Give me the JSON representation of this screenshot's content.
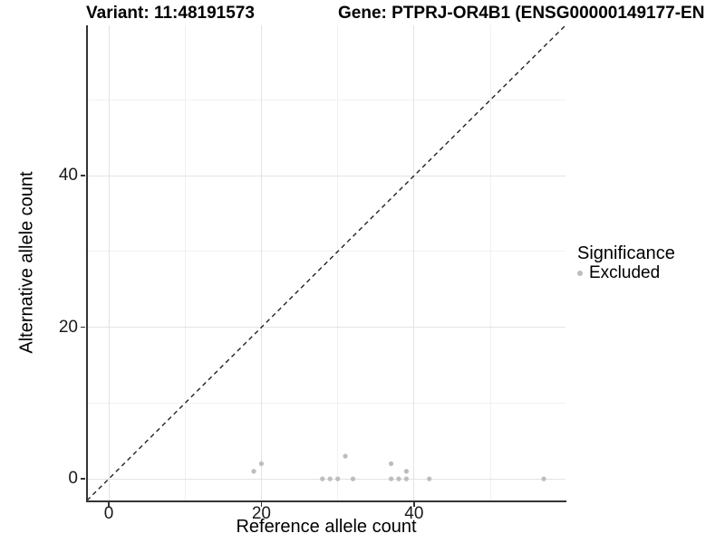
{
  "figure": {
    "background": "#ffffff",
    "axis_line_color": "#333333",
    "tick_color": "#333333",
    "major_grid_color": "#e3e3e3",
    "minor_grid_color": "#f1f1f1"
  },
  "chart_data": {
    "type": "scatter",
    "title_left": "Variant: 11:48191573",
    "title_right": "Gene: PTPRJ-OR4B1 (ENSG00000149177-EN",
    "xlabel": "Reference allele count",
    "ylabel": "Alternative allele count",
    "xlim": [
      -2.85,
      59.85
    ],
    "ylim": [
      -2.85,
      59.85
    ],
    "x_major_ticks": [
      0,
      20,
      40
    ],
    "y_major_ticks": [
      0,
      20,
      40
    ],
    "x_tick_labels": [
      "0",
      "20",
      "40"
    ],
    "y_tick_labels": [
      "0",
      "20",
      "40"
    ],
    "x_minor_gridlines": [
      10,
      30,
      50
    ],
    "y_minor_gridlines": [
      10,
      30,
      50
    ],
    "grid": true,
    "identity_line": {
      "style": "dashed",
      "color": "#222222",
      "from": [
        -2.85,
        -2.85
      ],
      "to": [
        59.85,
        59.85
      ]
    },
    "series": [
      {
        "name": "Excluded",
        "color": "#bdbdbd",
        "point_radius": 2.6,
        "points": [
          [
            19,
            1
          ],
          [
            20,
            2
          ],
          [
            28,
            0
          ],
          [
            29,
            0
          ],
          [
            30,
            0
          ],
          [
            31,
            3
          ],
          [
            32,
            0
          ],
          [
            37,
            0
          ],
          [
            37,
            2
          ],
          [
            38,
            0
          ],
          [
            39,
            0
          ],
          [
            39,
            1
          ],
          [
            42,
            0
          ],
          [
            57,
            0
          ]
        ]
      }
    ],
    "legend": {
      "title": "Significance",
      "position": "right",
      "entries": [
        {
          "label": "Excluded",
          "color": "#bdbdbd"
        }
      ]
    }
  }
}
